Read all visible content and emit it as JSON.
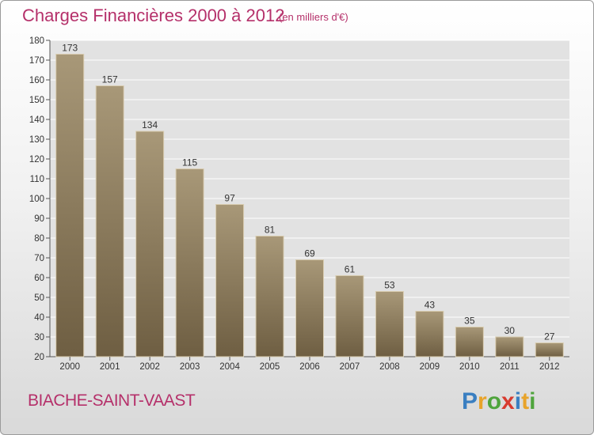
{
  "header": {
    "title": "Charges Financières 2000 à 2012",
    "subtitle": "(en milliers d'€)"
  },
  "footer": {
    "commune": "BIACHE-SAINT-VAAST",
    "logo_text": "Proxiti"
  },
  "colors": {
    "title": "#b5306a",
    "bar_top": "#a89878",
    "bar_bottom": "#6e5e42",
    "grid": "#ffffff"
  },
  "chart_data": {
    "type": "bar",
    "categories": [
      "2000",
      "2001",
      "2002",
      "2003",
      "2004",
      "2005",
      "2006",
      "2007",
      "2008",
      "2009",
      "2010",
      "2011",
      "2012"
    ],
    "values": [
      173,
      157,
      134,
      115,
      97,
      81,
      69,
      61,
      53,
      43,
      35,
      30,
      27
    ],
    "ylim": [
      20,
      180
    ],
    "yticks": [
      20,
      30,
      40,
      50,
      60,
      70,
      80,
      90,
      100,
      110,
      120,
      130,
      140,
      150,
      160,
      170,
      180
    ],
    "grid": true,
    "legend": "none"
  }
}
